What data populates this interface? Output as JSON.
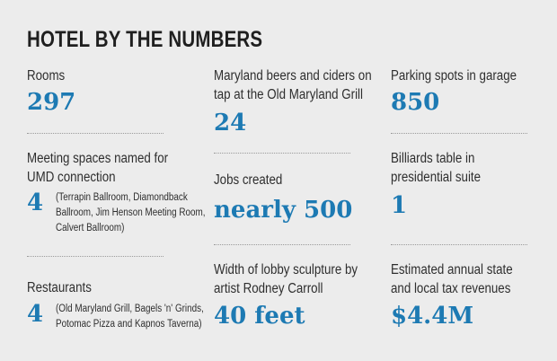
{
  "title": "HOTEL BY THE NUMBERS",
  "stats": {
    "rooms": {
      "label": "Rooms",
      "value": "297"
    },
    "meeting": {
      "label_lines": [
        "Meeting spaces named for",
        "UMD connection"
      ],
      "value": "4",
      "note_lines": [
        "(Terrapin Ballroom, Diamondback",
        "Ballroom, Jim Henson Meeting Room,",
        "Calvert Ballroom)"
      ]
    },
    "restaurants": {
      "label": "Restaurants",
      "value": "4",
      "note_lines": [
        "(Old Maryland Grill, Bagels 'n' Grinds,",
        "Potomac Pizza and Kapnos Taverna)"
      ]
    },
    "beers": {
      "label_lines": [
        "Maryland beers and ciders on",
        "tap at the Old Maryland Grill"
      ],
      "value": "24"
    },
    "jobs": {
      "label": "Jobs created",
      "value": "nearly 500"
    },
    "sculpture": {
      "label_lines": [
        "Width of lobby sculpture by",
        "artist Rodney Carroll"
      ],
      "value": "40 feet"
    },
    "parking": {
      "label": "Parking spots in garage",
      "value": "850"
    },
    "billiards": {
      "label_lines": [
        "Billiards table in",
        "presidential suite"
      ],
      "value": "1"
    },
    "tax": {
      "label_lines": [
        "Estimated annual state",
        "and local tax revenues"
      ],
      "value": "$4.4M"
    }
  },
  "colors": {
    "value": "#1d7ab3",
    "background": "#ececec"
  }
}
